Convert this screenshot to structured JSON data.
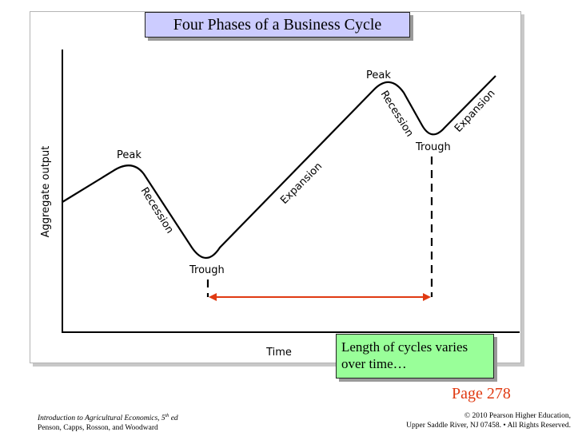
{
  "title": "Four Phases of a Business Cycle",
  "diagram": {
    "y_axis_label": "Aggregate output",
    "x_axis_label": "Time",
    "labels": {
      "peak_1": "Peak",
      "recession_1": "Recession",
      "trough_1": "Trough",
      "expansion_1": "Expansion",
      "peak_2": "Peak",
      "recession_2": "Recession",
      "trough_2": "Trough",
      "expansion_2": "Expansion"
    },
    "colors": {
      "curve": "#000000",
      "cycle_length_arrow": "#e03a12"
    }
  },
  "note": {
    "line1": "Length of cycles varies",
    "line2": "over time…"
  },
  "page_number": "Page 278",
  "footer": {
    "left_line1_italic": "Introduction to Agricultural Economics, 5",
    "left_line1_sup": "th",
    "left_line1_tail": " ed",
    "left_line2": "Penson, Capps, Rosson, and Woodward",
    "right_line1": "© 2010 Pearson Higher Education,",
    "right_line2": "Upper Saddle River, NJ 07458. • All Rights Reserved."
  }
}
